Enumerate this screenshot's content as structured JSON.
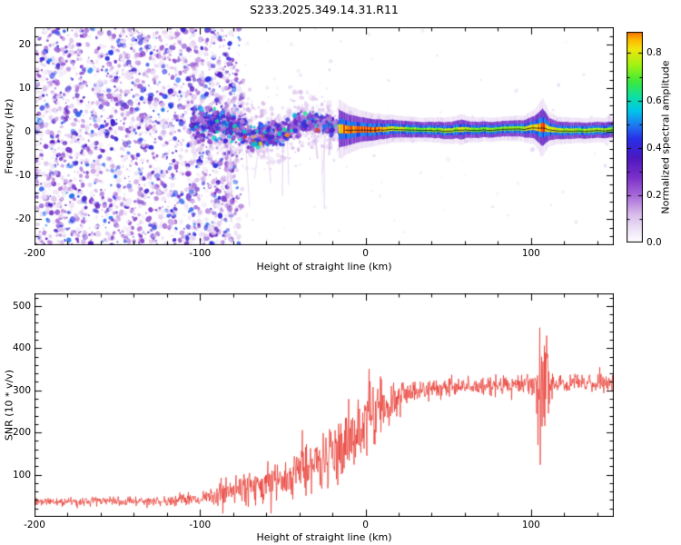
{
  "figure": {
    "background": "#ffffff",
    "frame_color": "#000000"
  },
  "chart_data": [
    {
      "type": "heatmap",
      "subtype": "dynamic-spectrum",
      "title": "S233.2025.349.14.31.R11",
      "xlabel": "Height of straight line (km)",
      "ylabel": "Frequency (Hz)",
      "xlim": [
        -200,
        150
      ],
      "ylim": [
        -26,
        24
      ],
      "xticks": [
        -200,
        -100,
        0,
        100
      ],
      "x_minor_step": 20,
      "yticks": [
        -20,
        -10,
        0,
        10,
        20
      ],
      "y_minor_step": 2,
      "grid": false,
      "colorbar": {
        "label": "Normalized spectral amplitude",
        "ticks": [
          0,
          0.2,
          0.4,
          0.6,
          0.8
        ],
        "vmax": 0.89,
        "stops": [
          [
            0,
            "#ffffff"
          ],
          [
            0.04,
            "#f3ecf9"
          ],
          [
            0.12,
            "#d9bcec"
          ],
          [
            0.2,
            "#a86ad8"
          ],
          [
            0.28,
            "#7a2fc8"
          ],
          [
            0.36,
            "#4c18c0"
          ],
          [
            0.44,
            "#2730e8"
          ],
          [
            0.5,
            "#1e7cf2"
          ],
          [
            0.56,
            "#00c8e8"
          ],
          [
            0.62,
            "#10e0a0"
          ],
          [
            0.68,
            "#3ce83c"
          ],
          [
            0.75,
            "#9ff312"
          ],
          [
            0.82,
            "#f2e50f"
          ],
          [
            0.86,
            "#ffb400"
          ],
          [
            0.92,
            "#f02e0c"
          ],
          [
            1,
            "#c4003c"
          ]
        ]
      },
      "description": "Dense purple speckle noise left of -75 km; broad scattered signal band from -105 to -15 km centered near 0 Hz with cyan speckles; narrow high-amplitude colored trace along ~+0.5 Hz from -15 to 150 km with a disturbance near +107 km; thin dark carrier line along the trace",
      "signal_envelope": [
        [
          -105,
          2.2,
          8.5,
          0.5
        ],
        [
          -95,
          1.8,
          7.5,
          0.52
        ],
        [
          -85,
          1.5,
          6.5,
          0.55
        ],
        [
          -70,
          1.5,
          5.5,
          0.58
        ],
        [
          -55,
          1.4,
          5.0,
          0.6
        ],
        [
          -40,
          1.2,
          4.6,
          0.62
        ],
        [
          -28,
          1.0,
          4.2,
          0.66
        ],
        [
          -18,
          0.9,
          3.4,
          0.8
        ],
        [
          -10,
          0.7,
          2.6,
          0.9
        ],
        [
          -3,
          0.6,
          2.1,
          0.93
        ],
        [
          5,
          0.5,
          1.8,
          0.9
        ],
        [
          12,
          0.5,
          1.6,
          0.84
        ],
        [
          20,
          0.5,
          1.45,
          0.76
        ],
        [
          35,
          0.5,
          1.3,
          0.72
        ],
        [
          55,
          0.5,
          1.5,
          0.76
        ],
        [
          58,
          0.5,
          1.7,
          0.8
        ],
        [
          62,
          0.5,
          1.4,
          0.74
        ],
        [
          80,
          0.5,
          1.3,
          0.73
        ],
        [
          95,
          0.6,
          1.4,
          0.76
        ],
        [
          102,
          0.8,
          1.9,
          0.84
        ],
        [
          107,
          1.0,
          3.2,
          0.9
        ],
        [
          111,
          0.7,
          1.9,
          0.84
        ],
        [
          116,
          0.5,
          1.5,
          0.78
        ],
        [
          130,
          0.5,
          1.35,
          0.74
        ],
        [
          150,
          0.5,
          1.35,
          0.74
        ]
      ],
      "regions": {
        "noise": {
          "x": [
            -200,
            -74
          ],
          "count": 2500,
          "amp": [
            0.04,
            0.5
          ]
        },
        "band_blobs": {
          "x": [
            -105,
            -14
          ],
          "count": 1000
        },
        "halo": {
          "x": [
            -105,
            -8
          ],
          "count": 650
        },
        "streaks": {
          "x": [
            -88,
            -18
          ],
          "count": 12
        },
        "sparse": {
          "x": [
            -74,
            150
          ],
          "count": 300
        },
        "puff": {
          "x": [
            99,
            115
          ],
          "count": 80
        },
        "stray": {
          "count": 80
        }
      },
      "zero_line": {
        "x_start": -12,
        "x_end": 150,
        "color": "#1c1c1c"
      }
    },
    {
      "type": "line",
      "xlabel": "Height of straight line (km)",
      "ylabel": "SNR (10 * v/v)",
      "xlim": [
        -200,
        150
      ],
      "ylim": [
        0,
        530
      ],
      "xticks": [
        -200,
        -100,
        0,
        100
      ],
      "x_minor_step": 20,
      "yticks": [
        100,
        200,
        300,
        400,
        500
      ],
      "y_minor_step": 20,
      "color": "#e8342b",
      "description": "Noisy red SNR trace: ~35 baseline below -100 km, spiky rise between -90 and +20 km, plateau ~310 above +25 km, large excursion (~120 to ~500) near +105-110 km",
      "series_keypoints": [
        [
          -200,
          36,
          13
        ],
        [
          -160,
          37,
          13
        ],
        [
          -120,
          38,
          14
        ],
        [
          -102,
          42,
          16
        ],
        [
          -92,
          50,
          28
        ],
        [
          -86,
          62,
          55
        ],
        [
          -80,
          60,
          38
        ],
        [
          -72,
          68,
          45
        ],
        [
          -62,
          80,
          55
        ],
        [
          -52,
          90,
          60
        ],
        [
          -42,
          100,
          68
        ],
        [
          -32,
          115,
          80
        ],
        [
          -22,
          135,
          88
        ],
        [
          -14,
          160,
          95
        ],
        [
          -7,
          195,
          105
        ],
        [
          -1,
          228,
          95
        ],
        [
          4,
          245,
          90
        ],
        [
          10,
          258,
          80
        ],
        [
          16,
          272,
          62
        ],
        [
          24,
          290,
          42
        ],
        [
          35,
          300,
          30
        ],
        [
          55,
          307,
          28
        ],
        [
          75,
          311,
          28
        ],
        [
          92,
          314,
          30
        ],
        [
          101,
          317,
          36
        ],
        [
          104,
          300,
          185
        ],
        [
          109,
          300,
          185
        ],
        [
          112,
          315,
          50
        ],
        [
          118,
          316,
          30
        ],
        [
          135,
          318,
          28
        ],
        [
          150,
          318,
          28
        ]
      ]
    }
  ]
}
